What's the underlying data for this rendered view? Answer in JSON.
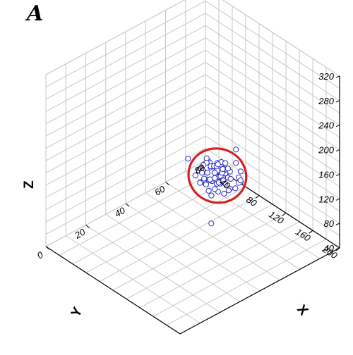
{
  "panel_label": "A",
  "chart_data": {
    "type": "scatter",
    "subtype": "3d-scatter-with-confidence-ellipse",
    "title": "",
    "xlabel": "X",
    "ylabel": "Y",
    "zlabel": "Z",
    "x_ticks": [
      "0",
      "20",
      "40",
      "60",
      "80"
    ],
    "y_ticks": [
      "0",
      "40",
      "80",
      "120",
      "160",
      "200"
    ],
    "z_ticks": [
      "40",
      "80",
      "120",
      "160",
      "200",
      "240",
      "280",
      "320"
    ],
    "xlim": [
      0,
      80
    ],
    "ylim": [
      0,
      200
    ],
    "zlim": [
      40,
      320
    ],
    "grid": true,
    "colors": {
      "points": "#3030c8",
      "ellipse": "#d42020",
      "grid": "#c8c8c8",
      "axes": "#000000"
    },
    "points": [
      {
        "x": 49,
        "y": 90,
        "z": 140
      },
      {
        "x": 63,
        "y": 103,
        "z": 108
      },
      {
        "x": 56,
        "y": 105,
        "z": 129
      },
      {
        "x": 62,
        "y": 99,
        "z": 160
      },
      {
        "x": 48,
        "y": 100,
        "z": 118
      },
      {
        "x": 54,
        "y": 87,
        "z": 114
      },
      {
        "x": 51,
        "y": 105,
        "z": 115
      },
      {
        "x": 45,
        "y": 105,
        "z": 140
      },
      {
        "x": 43,
        "y": 100,
        "z": 160
      },
      {
        "x": 47,
        "y": 101,
        "z": 150
      },
      {
        "x": 55,
        "y": 104,
        "z": 120
      },
      {
        "x": 49,
        "y": 95,
        "z": 131
      },
      {
        "x": 54,
        "y": 103,
        "z": 144
      },
      {
        "x": 54,
        "y": 97,
        "z": 122
      },
      {
        "x": 52,
        "y": 98,
        "z": 148
      },
      {
        "x": 57,
        "y": 99,
        "z": 130
      },
      {
        "x": 50,
        "y": 94,
        "z": 158
      },
      {
        "x": 45,
        "y": 97,
        "z": 135
      },
      {
        "x": 42,
        "y": 98,
        "z": 152
      },
      {
        "x": 59,
        "y": 112,
        "z": 129
      },
      {
        "x": 51,
        "y": 112,
        "z": 143
      },
      {
        "x": 50,
        "y": 91,
        "z": 161
      },
      {
        "x": 52,
        "y": 101,
        "z": 157
      },
      {
        "x": 43,
        "y": 102,
        "z": 141
      },
      {
        "x": 46,
        "y": 109,
        "z": 166
      },
      {
        "x": 51,
        "y": 114,
        "z": 118
      },
      {
        "x": 42,
        "y": 109,
        "z": 168
      },
      {
        "x": 38,
        "y": 99,
        "z": 187
      },
      {
        "x": 46,
        "y": 96,
        "z": 148
      },
      {
        "x": 54,
        "y": 100,
        "z": 136
      },
      {
        "x": 52,
        "y": 101,
        "z": 129
      },
      {
        "x": 50,
        "y": 96,
        "z": 157
      },
      {
        "x": 52,
        "y": 102,
        "z": 136
      },
      {
        "x": 55,
        "y": 98,
        "z": 151
      },
      {
        "x": 47,
        "y": 107,
        "z": 117
      },
      {
        "x": 48,
        "y": 104,
        "z": 161
      },
      {
        "x": 50,
        "y": 111,
        "z": 144
      },
      {
        "x": 51,
        "y": 103,
        "z": 146
      },
      {
        "x": 55,
        "y": 104,
        "z": 137
      },
      {
        "x": 43,
        "y": 110,
        "z": 145
      },
      {
        "x": 60,
        "y": 112,
        "z": 137
      },
      {
        "x": 47,
        "y": 106,
        "z": 164
      },
      {
        "x": 54,
        "y": 98,
        "z": 129
      },
      {
        "x": 43,
        "y": 108,
        "z": 150
      },
      {
        "x": 56,
        "y": 101,
        "z": 139
      },
      {
        "x": 54,
        "y": 98,
        "z": 141
      },
      {
        "x": 57,
        "y": 100,
        "z": 137
      },
      {
        "x": 51,
        "y": 101,
        "z": 132
      },
      {
        "x": 53,
        "y": 98,
        "z": 141
      },
      {
        "x": 51,
        "y": 108,
        "z": 130
      },
      {
        "x": 50,
        "y": 103,
        "z": 146
      },
      {
        "x": 57,
        "y": 105,
        "z": 137
      },
      {
        "x": 41,
        "y": 114,
        "z": 160
      },
      {
        "x": 55,
        "y": 101,
        "z": 143
      },
      {
        "x": 48,
        "y": 112,
        "z": 138
      },
      {
        "x": 51,
        "y": 88,
        "z": 150
      },
      {
        "x": 48,
        "y": 115,
        "z": 142
      },
      {
        "x": 54,
        "y": 100,
        "z": 131
      },
      {
        "x": 61,
        "y": 102,
        "z": 142
      },
      {
        "x": 50,
        "y": 102,
        "z": 156
      },
      {
        "x": 47,
        "y": 112,
        "z": 131
      },
      {
        "x": 47,
        "y": 112,
        "z": 149
      },
      {
        "x": 47,
        "y": 95,
        "z": 158
      },
      {
        "x": 54,
        "y": 103,
        "z": 127
      },
      {
        "x": 55,
        "y": 91,
        "z": 139
      },
      {
        "x": 52,
        "y": 108,
        "z": 146
      },
      {
        "x": 58,
        "y": 115,
        "z": 124
      },
      {
        "x": 57,
        "y": 102,
        "z": 140
      },
      {
        "x": 58,
        "y": 95,
        "z": 142
      },
      {
        "x": 56,
        "y": 90,
        "z": 140
      },
      {
        "x": 51,
        "y": 92,
        "z": 124
      },
      {
        "x": 48,
        "y": 102,
        "z": 138
      },
      {
        "x": 54,
        "y": 103,
        "z": 145
      },
      {
        "x": 53,
        "y": 107,
        "z": 131
      },
      {
        "x": 58,
        "y": 103,
        "z": 122
      },
      {
        "x": 56,
        "y": 108,
        "z": 113
      },
      {
        "x": 45,
        "y": 105,
        "z": 137
      },
      {
        "x": 61,
        "y": 101,
        "z": 100
      },
      {
        "x": 57,
        "y": 103,
        "z": 105
      },
      {
        "x": 65,
        "y": 97,
        "z": 103
      },
      {
        "x": 51,
        "y": 95,
        "z": 56
      }
    ]
  }
}
